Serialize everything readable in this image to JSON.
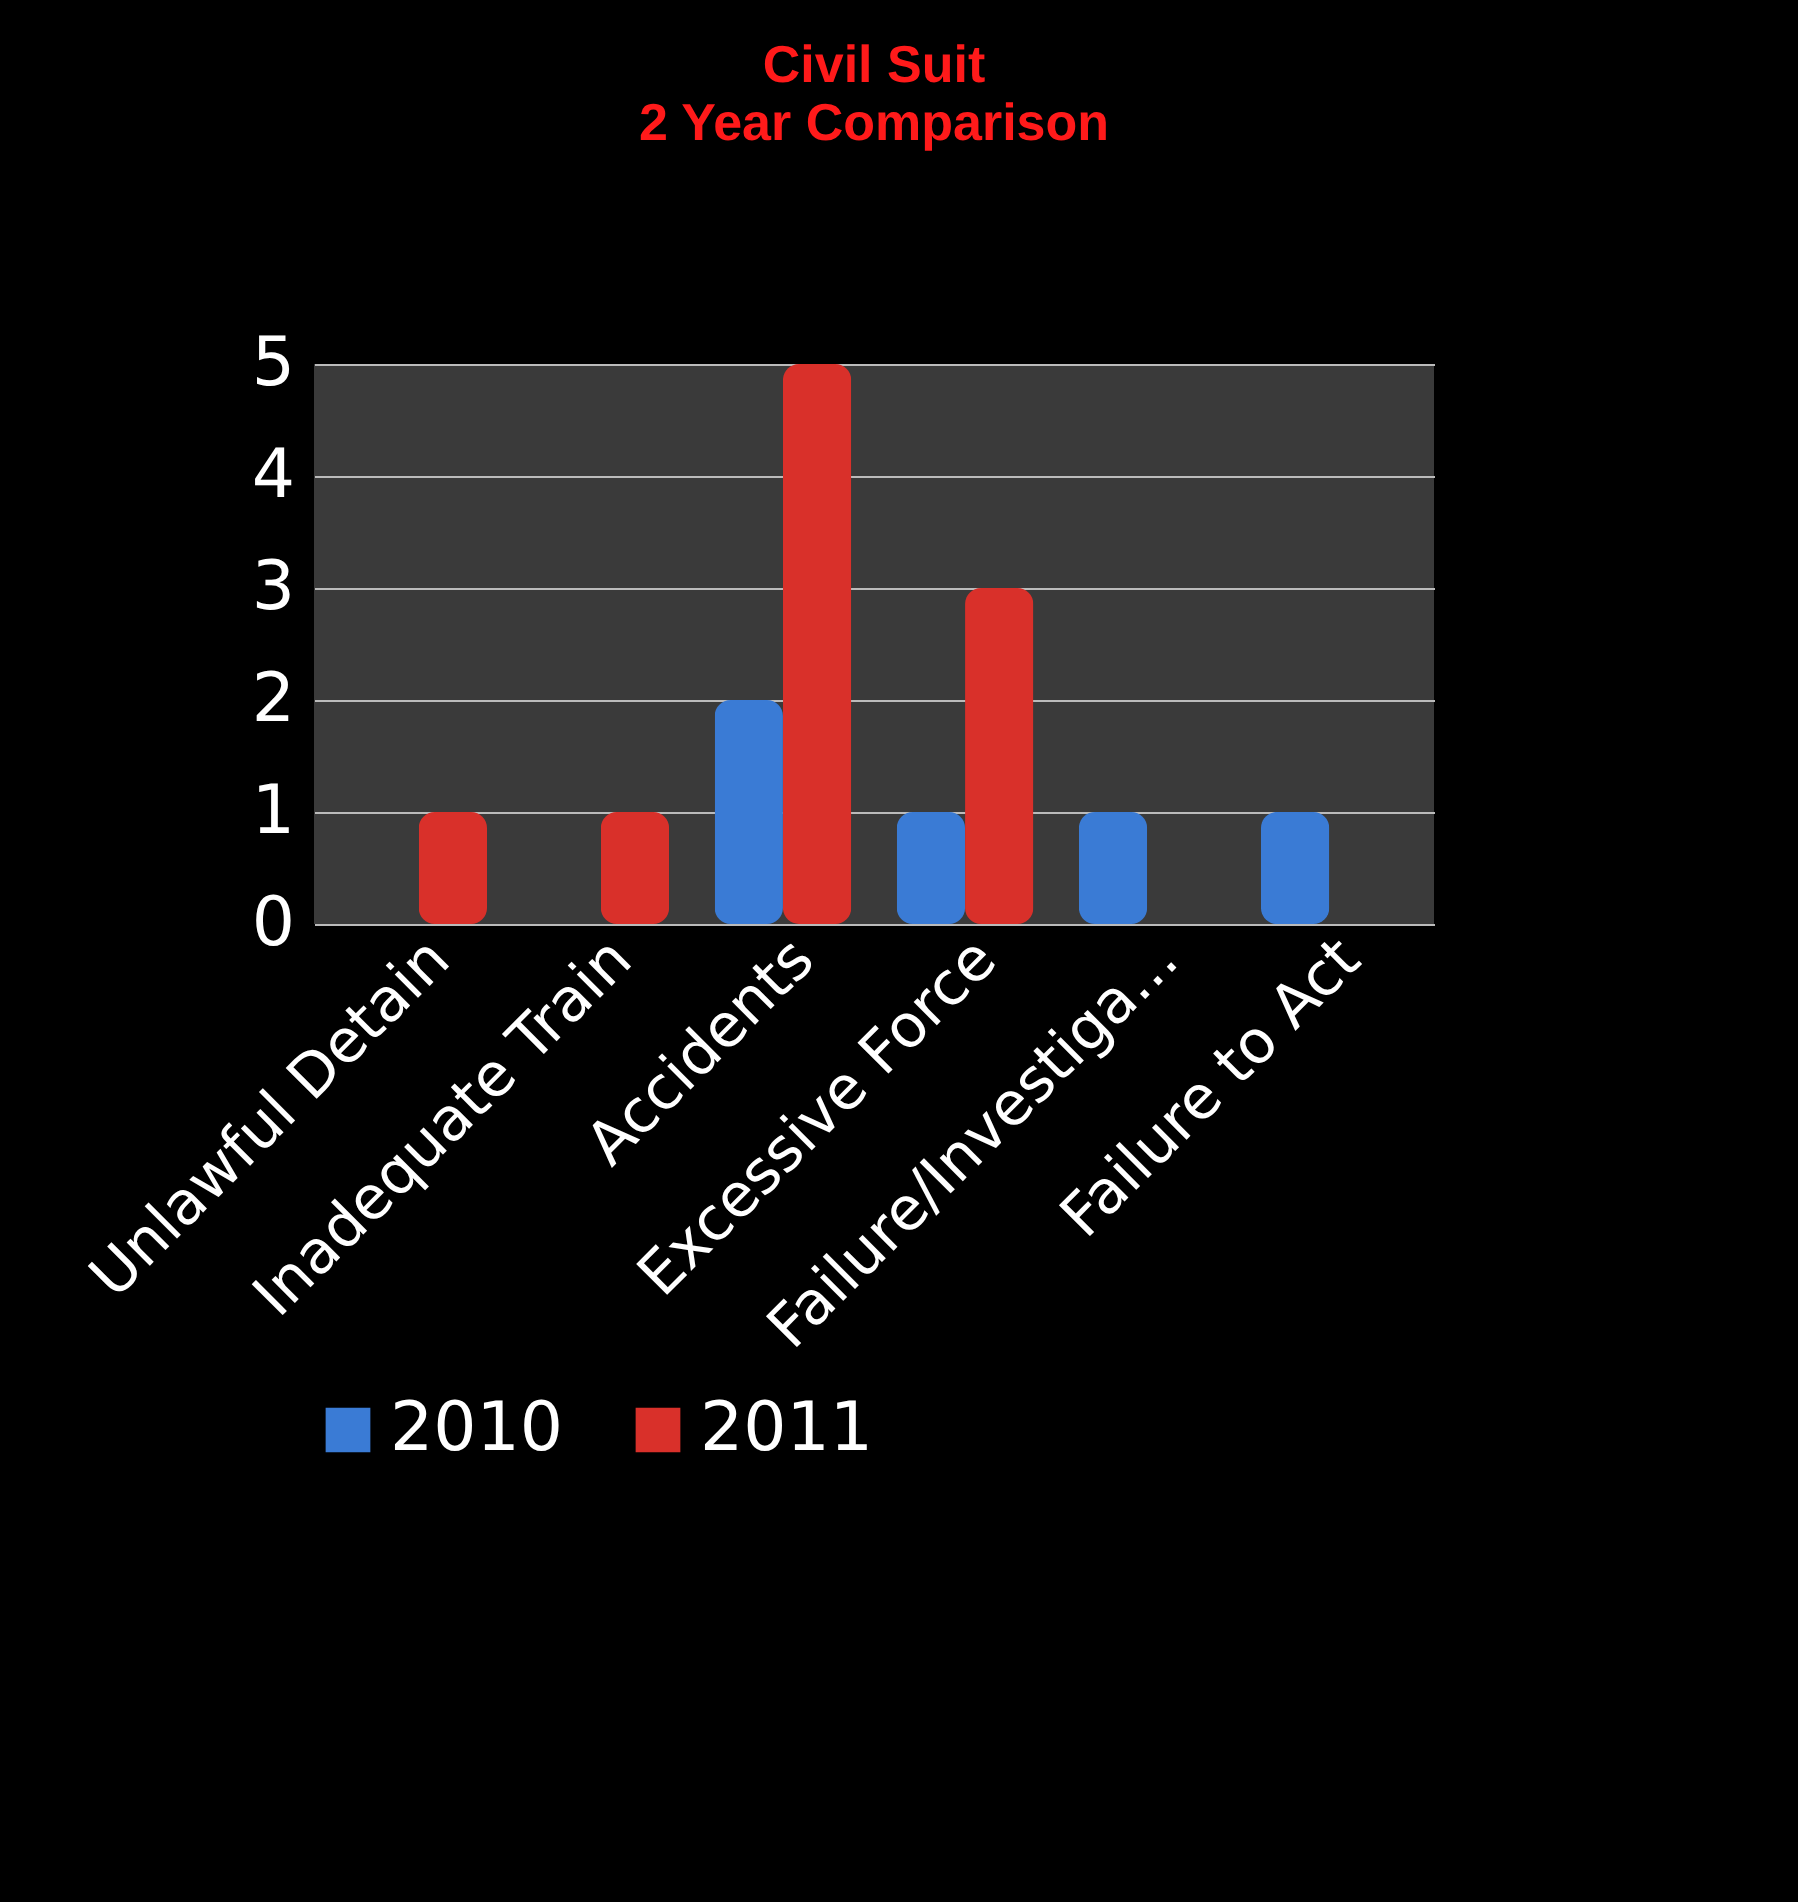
{
  "chart_data": {
    "type": "bar",
    "title": "Civil Suit",
    "subtitle": "2 Year Comparison",
    "categories": [
      "Unlawful Detain",
      "Inadequate Train",
      "Accidents",
      "Excessive Force",
      "Failure/Investiga...",
      "Failure to Act"
    ],
    "series": [
      {
        "name": "2010",
        "color": "#3a7bd5",
        "values": [
          0,
          0,
          2,
          1,
          1,
          1
        ]
      },
      {
        "name": "2011",
        "color": "#d9302a",
        "values": [
          1,
          1,
          5,
          3,
          0,
          0
        ]
      }
    ],
    "ylim": [
      0,
      5
    ],
    "yticks": [
      0,
      1,
      2,
      3,
      4,
      5
    ],
    "grid": "y",
    "legend": "bottom"
  }
}
